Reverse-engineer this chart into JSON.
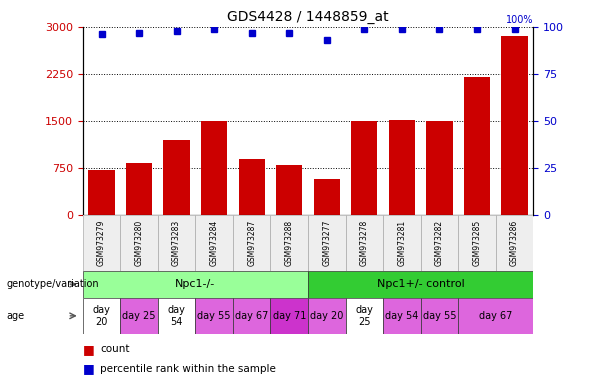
{
  "title": "GDS4428 / 1448859_at",
  "samples": [
    "GSM973279",
    "GSM973280",
    "GSM973283",
    "GSM973284",
    "GSM973287",
    "GSM973288",
    "GSM973277",
    "GSM973278",
    "GSM973281",
    "GSM973282",
    "GSM973285",
    "GSM973286"
  ],
  "counts": [
    720,
    830,
    1200,
    1500,
    900,
    800,
    580,
    1500,
    1520,
    1500,
    2200,
    2850
  ],
  "percentiles": [
    96,
    97,
    98,
    99,
    97,
    97,
    93,
    99,
    99,
    99,
    99,
    99
  ],
  "bar_color": "#cc0000",
  "dot_color": "#0000cc",
  "ylim_left": [
    0,
    3000
  ],
  "ylim_right": [
    0,
    100
  ],
  "yticks_left": [
    0,
    750,
    1500,
    2250,
    3000
  ],
  "yticks_right": [
    0,
    25,
    50,
    75,
    100
  ],
  "genotype_groups": [
    {
      "label": "Npc1-/-",
      "start": 0,
      "end": 6,
      "color": "#99ff99"
    },
    {
      "label": "Npc1+/- control",
      "start": 6,
      "end": 12,
      "color": "#33cc33"
    }
  ],
  "age_spans": [
    {
      "label": "day\n20",
      "start": 0,
      "end": 1,
      "color": "#ffffff"
    },
    {
      "label": "day 25",
      "start": 1,
      "end": 2,
      "color": "#dd66dd"
    },
    {
      "label": "day\n54",
      "start": 2,
      "end": 3,
      "color": "#ffffff"
    },
    {
      "label": "day 55",
      "start": 3,
      "end": 4,
      "color": "#dd66dd"
    },
    {
      "label": "day 67",
      "start": 4,
      "end": 5,
      "color": "#dd66dd"
    },
    {
      "label": "day 71",
      "start": 5,
      "end": 6,
      "color": "#cc33cc"
    },
    {
      "label": "day 20",
      "start": 6,
      "end": 7,
      "color": "#dd66dd"
    },
    {
      "label": "day\n25",
      "start": 7,
      "end": 8,
      "color": "#ffffff"
    },
    {
      "label": "day 54",
      "start": 8,
      "end": 9,
      "color": "#dd66dd"
    },
    {
      "label": "day 55",
      "start": 9,
      "end": 10,
      "color": "#dd66dd"
    },
    {
      "label": "day 67",
      "start": 10,
      "end": 12,
      "color": "#dd66dd"
    }
  ],
  "tick_color_left": "#cc0000",
  "tick_color_right": "#0000cc"
}
